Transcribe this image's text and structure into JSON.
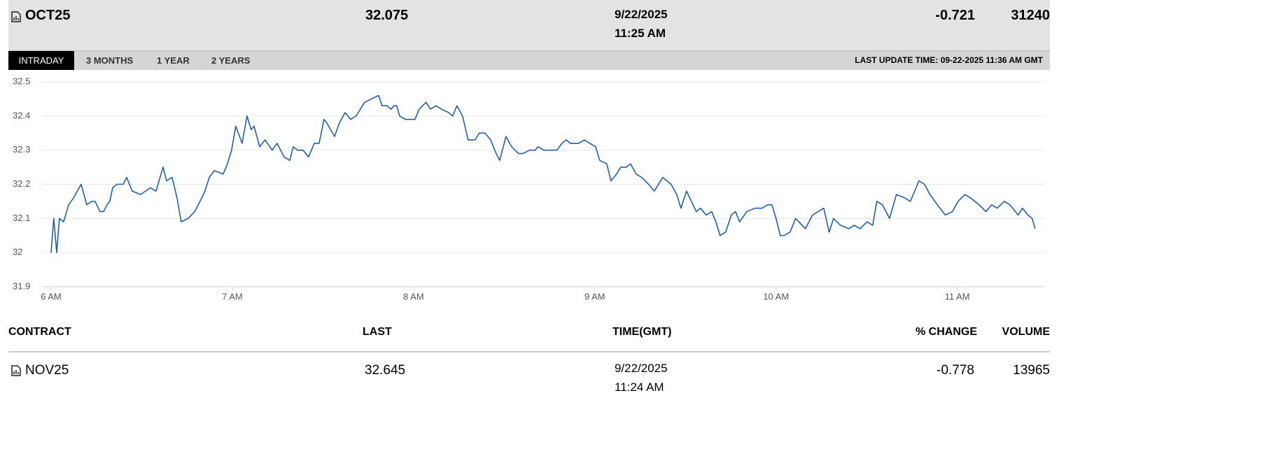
{
  "header": {
    "symbol": "OCT25",
    "last": "32.075",
    "date": "9/22/2025",
    "time": "11:25 AM",
    "change": "-0.721",
    "volume": "31240"
  },
  "tabs": [
    "INTRADAY",
    "3 MONTHS",
    "1 YEAR",
    "2 YEARS"
  ],
  "last_update": "LAST UPDATE TIME: 09-22-2025 11:36 AM GMT",
  "chart_data": {
    "type": "line",
    "color": "#1f5fa6",
    "grid": true,
    "x": [
      6.0,
      6.015,
      6.031,
      6.046,
      6.069,
      6.097,
      6.124,
      6.166,
      6.197,
      6.224,
      6.243,
      6.27,
      6.29,
      6.309,
      6.324,
      6.34,
      6.363,
      6.398,
      6.417,
      6.448,
      6.494,
      6.548,
      6.579,
      6.618,
      6.637,
      6.668,
      6.695,
      6.718,
      6.757,
      6.792,
      6.822,
      6.849,
      6.873,
      6.9,
      6.95,
      6.973,
      6.996,
      7.019,
      7.054,
      7.081,
      7.104,
      7.12,
      7.151,
      7.181,
      7.22,
      7.247,
      7.286,
      7.317,
      7.336,
      7.359,
      7.39,
      7.421,
      7.452,
      7.479,
      7.506,
      7.521,
      7.564,
      7.591,
      7.622,
      7.653,
      7.683,
      7.73,
      7.768,
      7.807,
      7.826,
      7.853,
      7.876,
      7.892,
      7.907,
      7.923,
      7.954,
      8.008,
      8.031,
      8.069,
      8.093,
      8.124,
      8.154,
      8.193,
      8.216,
      8.239,
      8.27,
      8.301,
      8.34,
      8.363,
      8.394,
      8.425,
      8.456,
      8.475,
      8.51,
      8.541,
      8.579,
      8.602,
      8.641,
      8.672,
      8.687,
      8.718,
      8.791,
      8.819,
      8.842,
      8.865,
      8.911,
      8.942,
      9.004,
      9.027,
      9.066,
      9.089,
      9.12,
      9.143,
      9.174,
      9.197,
      9.228,
      9.259,
      9.297,
      9.328,
      9.375,
      9.421,
      9.452,
      9.475,
      9.506,
      9.56,
      9.583,
      9.614,
      9.645,
      9.668,
      9.691,
      9.722,
      9.753,
      9.776,
      9.799,
      9.838,
      9.884,
      9.923,
      9.954,
      9.977,
      10.0,
      10.023,
      10.046,
      10.077,
      10.108,
      10.162,
      10.201,
      10.232,
      10.263,
      10.293,
      10.317,
      10.355,
      10.402,
      10.432,
      10.463,
      10.502,
      10.533,
      10.556,
      10.587,
      10.626,
      10.664,
      10.71,
      10.741,
      10.788,
      10.819,
      10.849,
      10.904,
      10.934,
      10.973,
      11.004,
      11.042,
      11.073,
      11.12,
      11.158,
      11.189,
      11.22,
      11.259,
      11.29,
      11.336,
      11.359,
      11.39,
      11.413,
      11.429
    ],
    "series": [
      {
        "name": "OCT25",
        "color": "#1f5fa6",
        "values": [
          32.0,
          32.1,
          32.0,
          32.1,
          32.09,
          32.14,
          32.16,
          32.2,
          32.14,
          32.15,
          32.15,
          32.12,
          32.12,
          32.14,
          32.15,
          32.19,
          32.2,
          32.2,
          32.22,
          32.18,
          32.17,
          32.19,
          32.18,
          32.25,
          32.21,
          32.22,
          32.16,
          32.09,
          32.1,
          32.12,
          32.15,
          32.18,
          32.22,
          32.24,
          32.23,
          32.26,
          32.3,
          32.37,
          32.32,
          32.4,
          32.36,
          32.37,
          32.31,
          32.33,
          32.3,
          32.32,
          32.28,
          32.27,
          32.31,
          32.3,
          32.3,
          32.28,
          32.32,
          32.32,
          32.39,
          32.38,
          32.34,
          32.38,
          32.41,
          32.39,
          32.4,
          32.44,
          32.45,
          32.46,
          32.43,
          32.43,
          32.42,
          32.43,
          32.43,
          32.4,
          32.39,
          32.39,
          32.42,
          32.44,
          32.42,
          32.43,
          32.42,
          32.41,
          32.4,
          32.43,
          32.4,
          32.33,
          32.33,
          32.35,
          32.35,
          32.33,
          32.29,
          32.27,
          32.34,
          32.31,
          32.29,
          32.29,
          32.3,
          32.3,
          32.31,
          32.3,
          32.3,
          32.32,
          32.33,
          32.32,
          32.32,
          32.33,
          32.31,
          32.27,
          32.26,
          32.21,
          32.23,
          32.25,
          32.25,
          32.26,
          32.23,
          32.22,
          32.2,
          32.18,
          32.22,
          32.2,
          32.17,
          32.13,
          32.18,
          32.12,
          32.13,
          32.11,
          32.12,
          32.09,
          32.05,
          32.06,
          32.11,
          32.12,
          32.09,
          32.12,
          32.13,
          32.13,
          32.14,
          32.14,
          32.1,
          32.05,
          32.05,
          32.06,
          32.1,
          32.07,
          32.11,
          32.12,
          32.13,
          32.06,
          32.1,
          32.08,
          32.07,
          32.08,
          32.07,
          32.09,
          32.08,
          32.15,
          32.14,
          32.1,
          32.17,
          32.16,
          32.15,
          32.21,
          32.2,
          32.17,
          32.13,
          32.11,
          32.12,
          32.15,
          32.17,
          32.16,
          32.14,
          32.12,
          32.14,
          32.13,
          32.15,
          32.14,
          32.11,
          32.13,
          32.11,
          32.1,
          32.07
        ]
      }
    ],
    "xlim": [
      5.95,
      11.48
    ],
    "xticks": [
      {
        "value": 6,
        "label": "6 AM"
      },
      {
        "value": 7,
        "label": "7 AM"
      },
      {
        "value": 8,
        "label": "8 AM"
      },
      {
        "value": 9,
        "label": "9 AM"
      },
      {
        "value": 10,
        "label": "10 AM"
      },
      {
        "value": 11,
        "label": "11 AM"
      }
    ],
    "ylim": [
      31.9,
      32.5
    ],
    "yticks": [
      31.9,
      32,
      32.1,
      32.2,
      32.3,
      32.4,
      32.5
    ]
  },
  "table": {
    "columns": [
      "CONTRACT",
      "LAST",
      "TIME(GMT)",
      "% CHANGE",
      "VOLUME"
    ],
    "rows": [
      [
        "NOV25",
        "32.645",
        "9/22/2025",
        "11:24 AM",
        "-0.778",
        "13965"
      ]
    ]
  }
}
